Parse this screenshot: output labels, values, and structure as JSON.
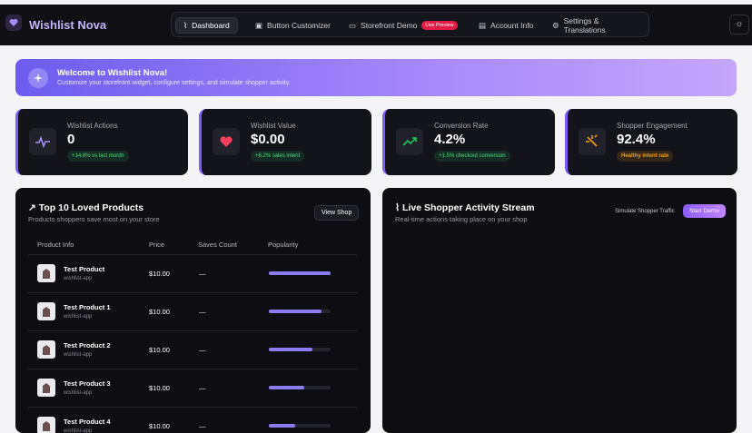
{
  "header": {
    "brand": "Wishlist Nova",
    "nav": [
      "Dashboard",
      "Button Customizer",
      "Storefront Demo",
      "Account Info",
      "Settings & Translations"
    ],
    "badge": "Live Preview"
  },
  "welcome": {
    "title": "Welcome to Wishlist Nova!",
    "subtitle": "Customize your storefront widget, configure settings, and simulate shopper activity."
  },
  "stats": [
    {
      "label": "Wishlist Actions",
      "value": "0",
      "change": "+14.8% vs last month"
    },
    {
      "label": "Wishlist Value",
      "value": "$0.00",
      "change": "+8.2% sales intent"
    },
    {
      "label": "Conversion Rate",
      "value": "4.2%",
      "change": "+1.5% checkout conversion"
    },
    {
      "label": "Shopper Engagement",
      "value": "92.4%",
      "change": "Healthy intent rate"
    }
  ],
  "top_products": {
    "title": "Top 10 Loved Products",
    "subtitle": "Products shoppers save most on your store",
    "button": "View Shop",
    "columns": [
      "Product Info",
      "Price",
      "Saves Count",
      "Popularity"
    ],
    "rows": [
      {
        "name": "Test Product",
        "vendor": "wishlist-app",
        "price": "$10.00",
        "saves": "—",
        "popularity": 100
      },
      {
        "name": "Test Product 1",
        "vendor": "wishlist-app",
        "price": "$10.00",
        "saves": "—",
        "popularity": 86
      },
      {
        "name": "Test Product 2",
        "vendor": "wishlist-app",
        "price": "$10.00",
        "saves": "—",
        "popularity": 71
      },
      {
        "name": "Test Product 3",
        "vendor": "wishlist-app",
        "price": "$10.00",
        "saves": "—",
        "popularity": 57
      },
      {
        "name": "Test Product 4",
        "vendor": "wishlist-app",
        "price": "$10.00",
        "saves": "—",
        "popularity": 43
      }
    ]
  },
  "activity": {
    "title": "Live Shopper Activity Stream",
    "subtitle": "Real-time actions taking place on your shop",
    "simulate_label": "Simulate Shopper Traffic",
    "button": "Start Demo"
  }
}
